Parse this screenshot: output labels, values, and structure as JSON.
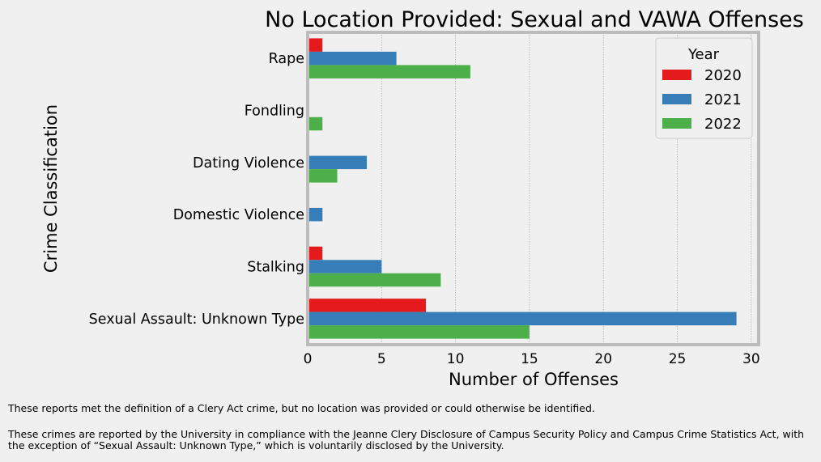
{
  "chart_data": {
    "type": "bar",
    "orientation": "horizontal",
    "title": "No Location Provided: Sexual and VAWA Offenses",
    "xlabel": "Number of Offenses",
    "ylabel": "Crime Classification",
    "categories": [
      "Rape",
      "Fondling",
      "Dating Violence",
      "Domestic Violence",
      "Stalking",
      "Sexual Assault: Unknown Type"
    ],
    "series": [
      {
        "name": "2020",
        "color": "#e41a1c",
        "values": [
          1,
          0,
          0,
          0,
          1,
          8
        ]
      },
      {
        "name": "2021",
        "color": "#377eb8",
        "values": [
          6,
          0,
          4,
          1,
          5,
          29
        ]
      },
      {
        "name": "2022",
        "color": "#4daf4a",
        "values": [
          11,
          1,
          2,
          0,
          9,
          15
        ]
      }
    ],
    "xlim": [
      0,
      30.5
    ],
    "xticks": [
      0,
      5,
      10,
      15,
      20,
      25,
      30
    ],
    "grid": "vertical dotted",
    "legend": {
      "title": "Year",
      "placement": "top-right"
    }
  },
  "footnotes": [
    "These reports met the definition of a Clery Act crime, but no location was provided or could otherwise be identified.",
    "These crimes are reported by the University in compliance with the Jeanne Clery Disclosure of Campus Security Policy and Campus Crime Statistics Act, with the exception of “Sexual Assault: Unknown Type,” which is voluntarily disclosed by the University."
  ]
}
